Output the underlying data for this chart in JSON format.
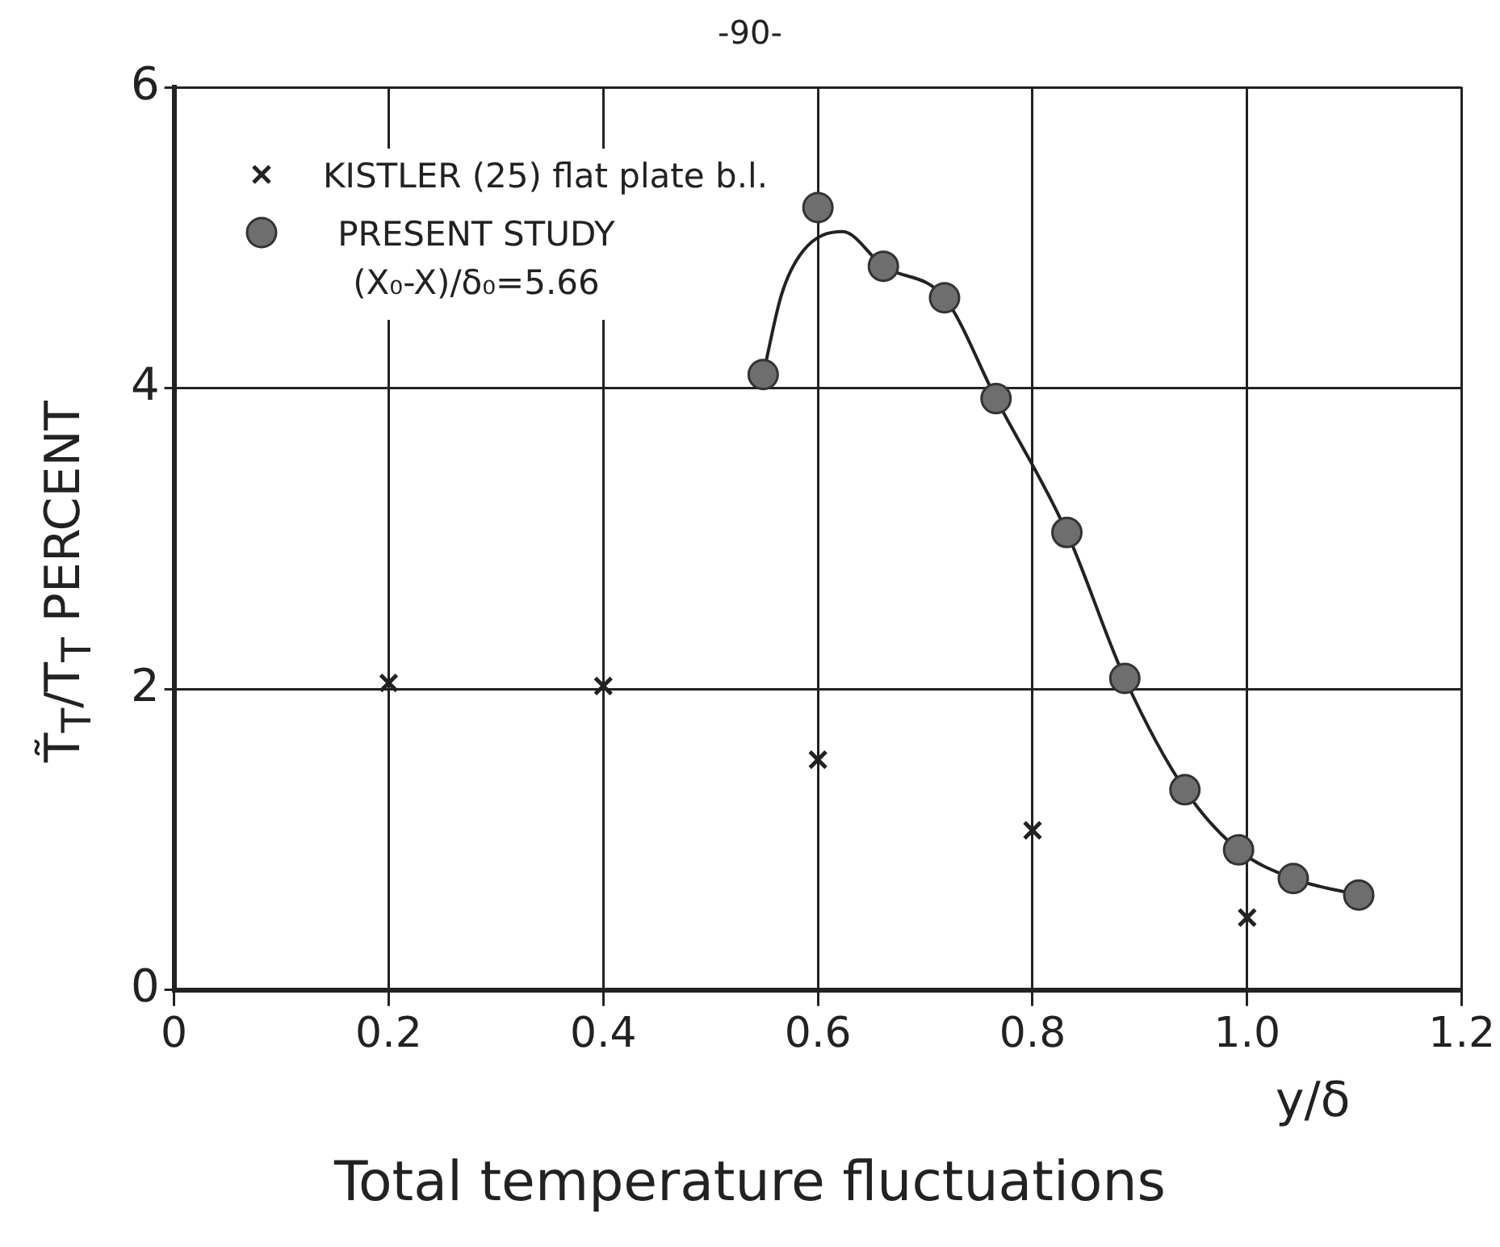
{
  "chart_data": {
    "type": "scatter",
    "title": "Total temperature fluctuations",
    "xlabel": "y/δ",
    "ylabel": "T̃$_{T}$/T$_{T}$   PERCENT",
    "annotations": [
      "-90-"
    ],
    "xlim": [
      0,
      1.2
    ],
    "xticks": [
      0,
      0.2,
      0.4,
      0.6,
      0.8,
      {
        "value": 1,
        "label": "1.0"
      },
      1.2
    ],
    "ylim": [
      0,
      6
    ],
    "yticks": [
      0,
      2,
      4,
      6
    ],
    "grid": true,
    "legend": "top left",
    "series": [
      {
        "name": "KISTLER (25) flat plate b.l.",
        "marker": "cross",
        "color": "#222222",
        "x": [
          0.2,
          0.4,
          0.6,
          0.8,
          1.0
        ],
        "values": [
          2.04,
          2.02,
          1.53,
          1.06,
          0.48
        ]
      },
      {
        "name": "PRESENT STUDY (X₀-X)/δ₀=5.66",
        "marker": "circle",
        "color": "#6e6e6e",
        "x": [
          0.549,
          0.6,
          0.661,
          0.718,
          0.766,
          0.832,
          0.886,
          0.942,
          0.992,
          1.043,
          1.104
        ],
        "values": [
          4.09,
          5.2,
          4.81,
          4.6,
          3.93,
          3.04,
          2.07,
          1.33,
          0.93,
          0.74,
          0.63
        ]
      },
      {
        "type": "line",
        "marker": "none",
        "color": "#222222",
        "x": [
          0.549,
          0.566,
          0.586,
          0.623,
          0.661,
          0.718,
          0.766,
          0.832,
          0.886,
          0.942,
          0.992,
          1.043,
          1.104
        ],
        "values": [
          4.09,
          4.62,
          4.91,
          5.04,
          4.81,
          4.6,
          3.93,
          3.04,
          2.07,
          1.33,
          0.93,
          0.74,
          0.63
        ]
      }
    ]
  }
}
